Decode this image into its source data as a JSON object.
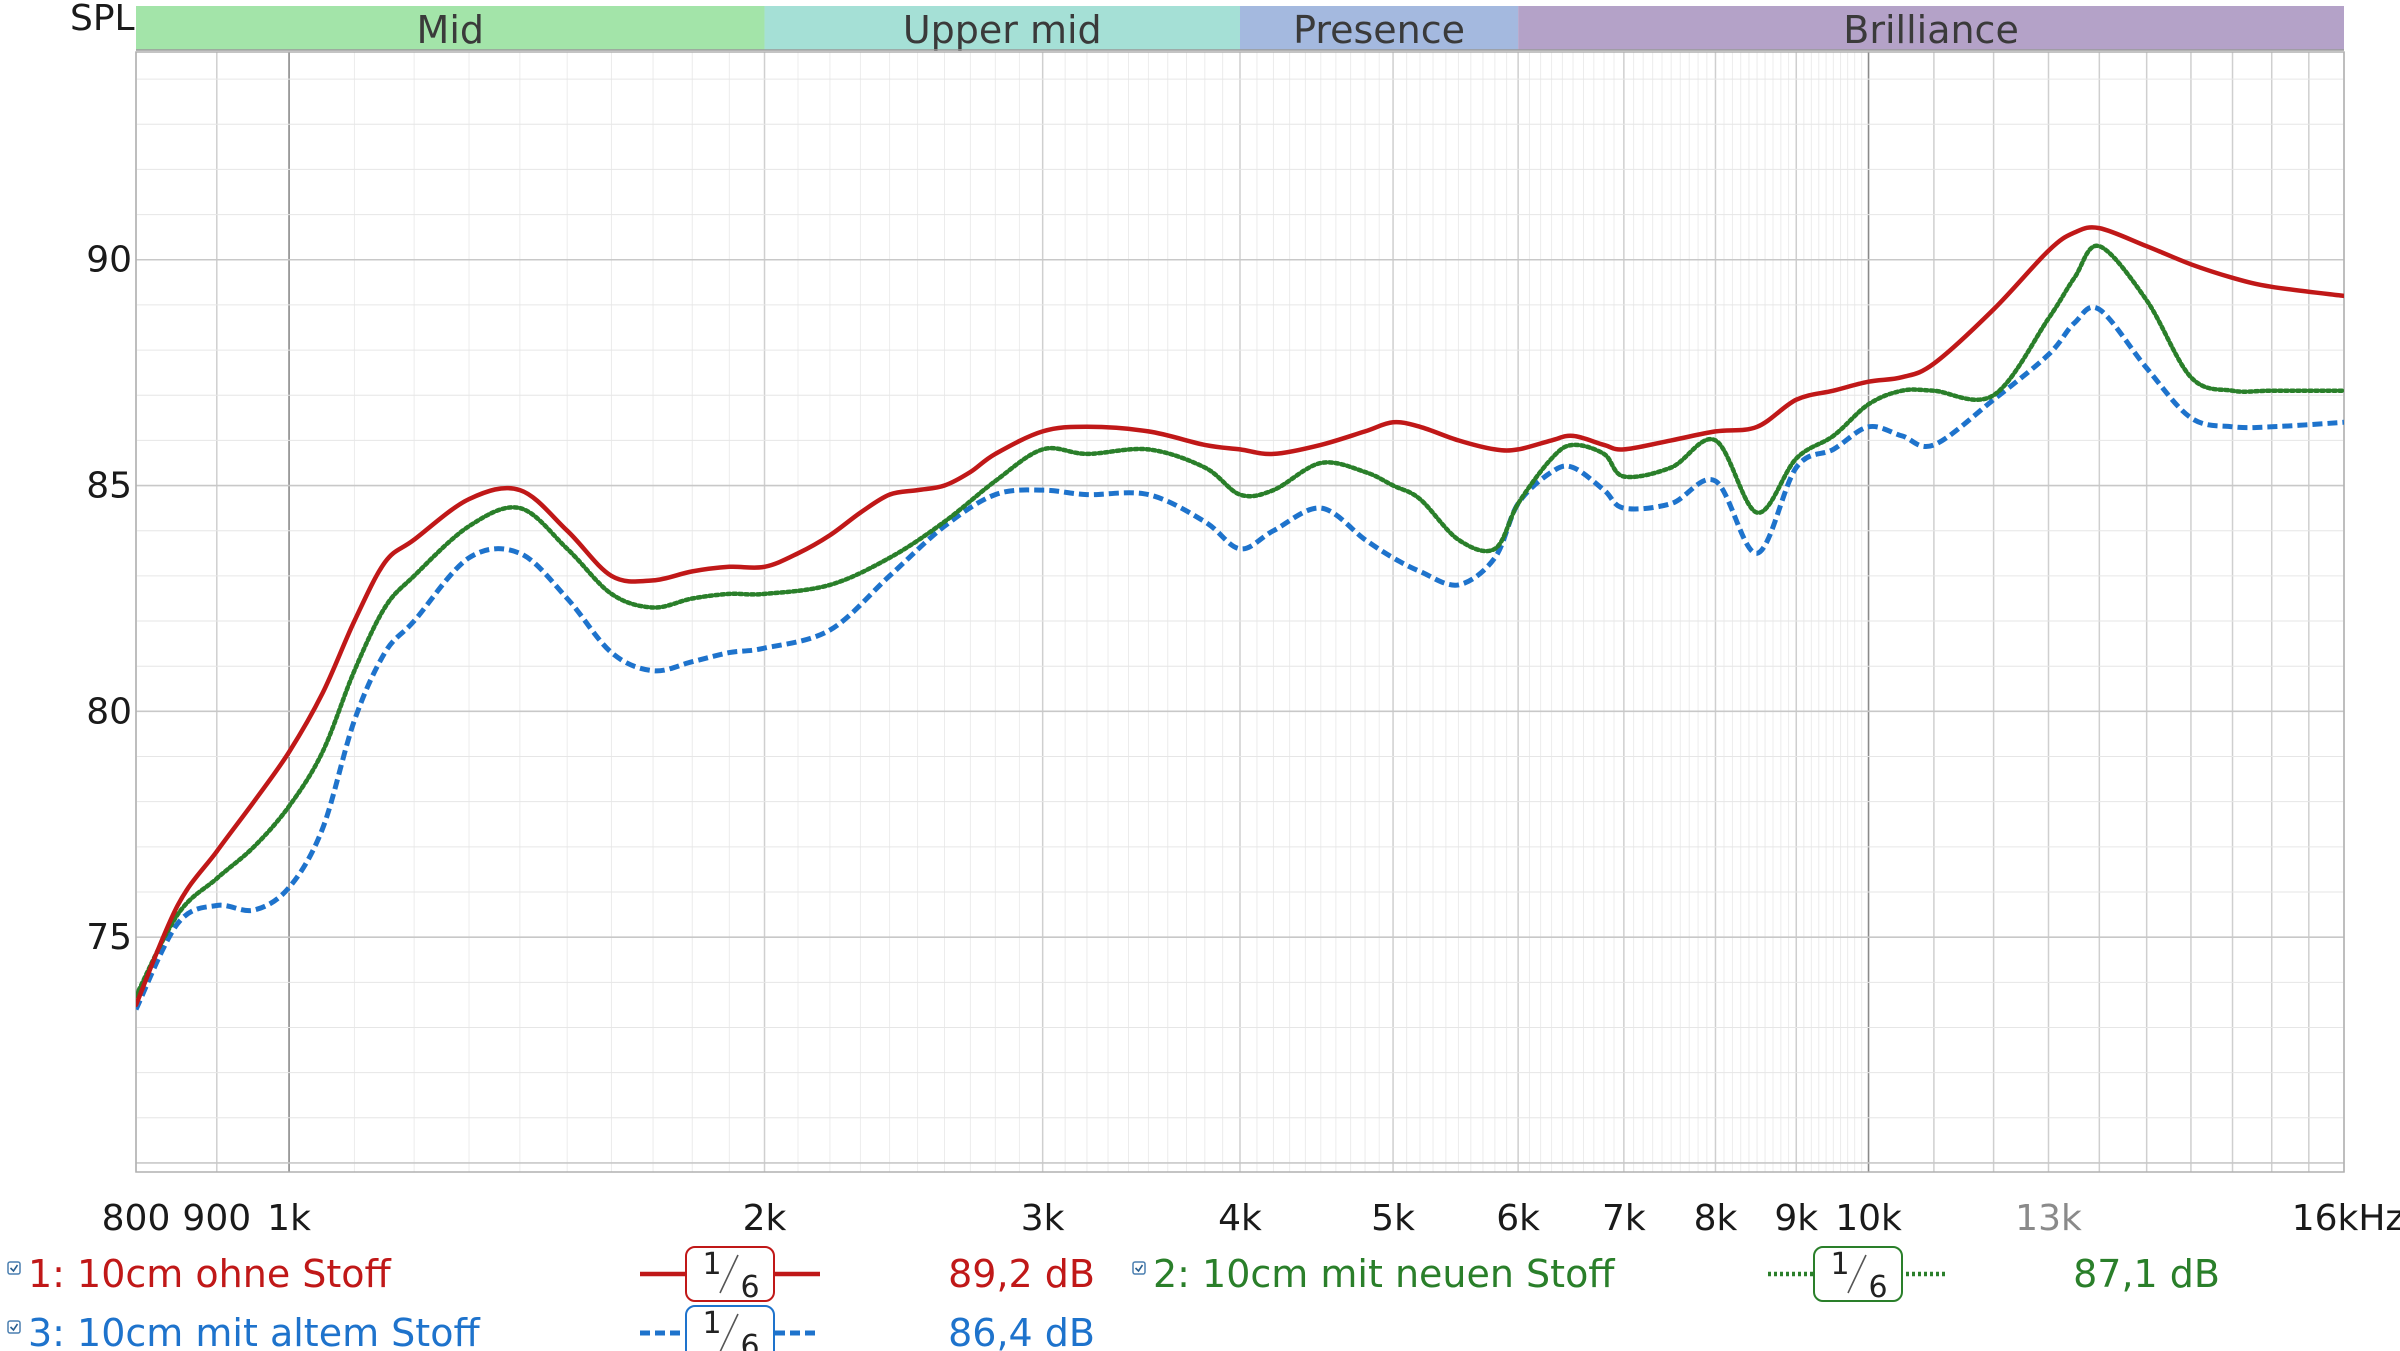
{
  "chart_data": {
    "type": "line",
    "ylabel": "SPL",
    "x_scale": "log",
    "xlim": [
      800,
      20000
    ],
    "ylim": [
      69.8,
      94.6
    ],
    "x_ticks": [
      {
        "value": 800,
        "label": "800"
      },
      {
        "value": 900,
        "label": "900"
      },
      {
        "value": 1000,
        "label": "1k"
      },
      {
        "value": 2000,
        "label": "2k"
      },
      {
        "value": 3000,
        "label": "3k"
      },
      {
        "value": 4000,
        "label": "4k"
      },
      {
        "value": 5000,
        "label": "5k"
      },
      {
        "value": 6000,
        "label": "6k"
      },
      {
        "value": 7000,
        "label": "7k"
      },
      {
        "value": 8000,
        "label": "8k"
      },
      {
        "value": 9000,
        "label": "9k"
      },
      {
        "value": 10000,
        "label": "10k"
      },
      {
        "value": 13000,
        "label": "13k",
        "muted": true
      },
      {
        "value": 20000,
        "label": "16kHz"
      }
    ],
    "y_ticks": [
      {
        "value": 75,
        "label": "75"
      },
      {
        "value": 80,
        "label": "80"
      },
      {
        "value": 85,
        "label": "85"
      },
      {
        "value": 90,
        "label": "90"
      }
    ],
    "bands": [
      {
        "name": "Mid",
        "from": 800,
        "to": 2000,
        "color": "#a3e4a9"
      },
      {
        "name": "Upper mid",
        "from": 2000,
        "to": 4000,
        "color": "#a5e0d6"
      },
      {
        "name": "Presence",
        "from": 4000,
        "to": 6000,
        "color": "#a4b9df"
      },
      {
        "name": "Brilliance",
        "from": 6000,
        "to": 20000,
        "color": "#b4a2c8"
      }
    ],
    "series": [
      {
        "name": "1: 10cm ohne Stoff",
        "color": "#c01818",
        "dash": "solid",
        "smoothing": {
          "num": "1",
          "den": "6"
        },
        "value_label": "89,2 dB",
        "x": [
          800,
          850,
          900,
          950,
          1000,
          1050,
          1100,
          1150,
          1200,
          1300,
          1400,
          1500,
          1600,
          1700,
          1800,
          1900,
          2000,
          2100,
          2200,
          2300,
          2400,
          2500,
          2600,
          2700,
          2800,
          3000,
          3200,
          3500,
          3800,
          4000,
          4200,
          4500,
          4800,
          5000,
          5200,
          5500,
          5800,
          6000,
          6300,
          6500,
          6800,
          7000,
          7500,
          8000,
          8500,
          9000,
          9500,
          10000,
          10500,
          11000,
          12000,
          13000,
          13500,
          14000,
          15000,
          16000,
          17000,
          18000,
          20000
        ],
        "y": [
          73.5,
          75.7,
          76.9,
          78.0,
          79.1,
          80.4,
          82.0,
          83.3,
          83.8,
          84.7,
          84.9,
          84.0,
          83.0,
          82.9,
          83.1,
          83.2,
          83.2,
          83.5,
          83.9,
          84.4,
          84.8,
          84.9,
          85.0,
          85.3,
          85.7,
          86.2,
          86.3,
          86.2,
          85.9,
          85.8,
          85.7,
          85.9,
          86.2,
          86.4,
          86.3,
          86.0,
          85.8,
          85.8,
          86.0,
          86.1,
          85.9,
          85.8,
          86.0,
          86.2,
          86.3,
          86.9,
          87.1,
          87.3,
          87.4,
          87.7,
          88.9,
          90.2,
          90.6,
          90.7,
          90.3,
          89.9,
          89.6,
          89.4,
          89.2
        ]
      },
      {
        "name": "2: 10cm mit neuen Stoff",
        "color": "#2a7f2a",
        "dash": "dotted",
        "smoothing": {
          "num": "1",
          "den": "6"
        },
        "value_label": "87,1 dB",
        "x": [
          800,
          850,
          900,
          950,
          1000,
          1050,
          1100,
          1150,
          1200,
          1300,
          1400,
          1500,
          1600,
          1700,
          1800,
          1900,
          2000,
          2200,
          2400,
          2600,
          2800,
          3000,
          3200,
          3500,
          3800,
          4000,
          4200,
          4500,
          4800,
          5000,
          5200,
          5500,
          5800,
          6000,
          6300,
          6500,
          6800,
          7000,
          7500,
          8000,
          8500,
          9000,
          9500,
          10000,
          10500,
          11000,
          12000,
          13000,
          13500,
          14000,
          15000,
          16000,
          17000,
          18000,
          20000
        ],
        "y": [
          73.7,
          75.5,
          76.3,
          77.0,
          77.9,
          79.1,
          80.9,
          82.3,
          83.0,
          84.1,
          84.5,
          83.6,
          82.6,
          82.3,
          82.5,
          82.6,
          82.6,
          82.8,
          83.4,
          84.2,
          85.1,
          85.8,
          85.7,
          85.8,
          85.4,
          84.8,
          84.9,
          85.5,
          85.3,
          85.0,
          84.7,
          83.8,
          83.6,
          84.6,
          85.6,
          85.9,
          85.7,
          85.2,
          85.4,
          86.0,
          84.4,
          85.6,
          86.1,
          86.8,
          87.1,
          87.1,
          87.0,
          88.7,
          89.6,
          90.3,
          89.1,
          87.4,
          87.1,
          87.1,
          87.1
        ]
      },
      {
        "name": "3: 10cm mit altem Stoff",
        "color": "#1e73cc",
        "dash": "dashed",
        "smoothing": {
          "num": "1",
          "den": "6"
        },
        "value_label": "86,4 dB",
        "x": [
          800,
          850,
          900,
          950,
          1000,
          1050,
          1100,
          1150,
          1200,
          1300,
          1400,
          1500,
          1600,
          1700,
          1800,
          1900,
          2000,
          2200,
          2400,
          2600,
          2800,
          3000,
          3200,
          3500,
          3800,
          4000,
          4200,
          4500,
          4800,
          5000,
          5200,
          5500,
          5800,
          6000,
          6300,
          6500,
          6800,
          7000,
          7500,
          8000,
          8500,
          9000,
          9500,
          10000,
          10500,
          11000,
          12000,
          13000,
          13500,
          14000,
          15000,
          16000,
          17000,
          18000,
          20000
        ],
        "y": [
          73.4,
          75.3,
          75.7,
          75.6,
          76.1,
          77.4,
          79.8,
          81.3,
          82.0,
          83.4,
          83.5,
          82.5,
          81.3,
          80.9,
          81.1,
          81.3,
          81.4,
          81.8,
          83.0,
          84.1,
          84.8,
          84.9,
          84.8,
          84.8,
          84.2,
          83.6,
          84.0,
          84.5,
          83.8,
          83.4,
          83.1,
          82.8,
          83.4,
          84.6,
          85.3,
          85.4,
          84.9,
          84.5,
          84.6,
          85.1,
          83.5,
          85.4,
          85.8,
          86.3,
          86.1,
          85.9,
          86.9,
          87.9,
          88.6,
          88.9,
          87.6,
          86.5,
          86.3,
          86.3,
          86.4
        ]
      }
    ]
  }
}
